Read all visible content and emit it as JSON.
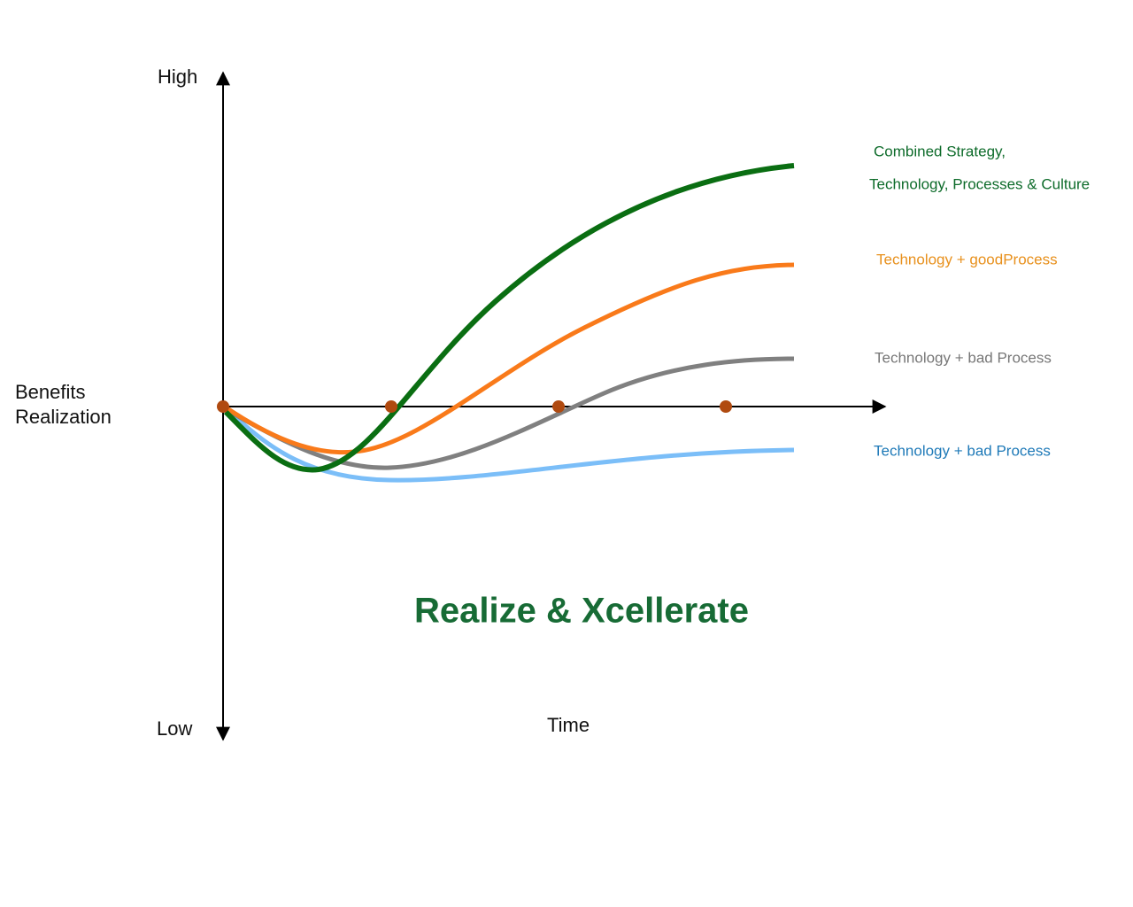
{
  "axes": {
    "y_high": "High",
    "y_low": "Low",
    "y_label": [
      "Benefits",
      "Realization"
    ],
    "x_label": "Time"
  },
  "title": "Realize & Xcellerate",
  "curves": [
    {
      "label": [
        "Combined Strategy,",
        "Technology, Processes & Culture"
      ]
    },
    {
      "label": [
        "Technology + goodProcess"
      ]
    },
    {
      "label": [
        "Technology + bad Process"
      ]
    },
    {
      "label": [
        "Technology + bad Process"
      ]
    }
  ]
}
